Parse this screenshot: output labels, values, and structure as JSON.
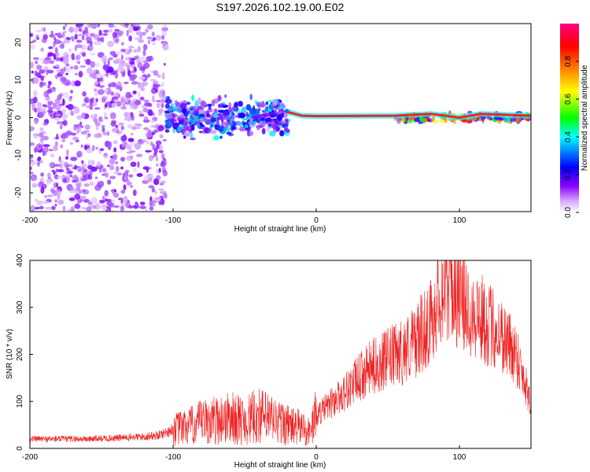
{
  "chart_data": [
    {
      "type": "heatmap",
      "title": "S197.2026.102.19.00.E02",
      "xlabel": "Height of straight line (km)",
      "ylabel": "Frequency (Hz)",
      "xlim": [
        -200,
        150
      ],
      "ylim": [
        -25,
        25
      ],
      "x_ticks": [
        -200,
        -100,
        0,
        100
      ],
      "x_tick_labels": [
        "-200",
        "-100",
        "0",
        "100"
      ],
      "y_ticks": [
        -20,
        -10,
        0,
        10,
        20
      ],
      "y_tick_labels": [
        "-20",
        "-10",
        "0",
        "10",
        "20"
      ],
      "colorbar": {
        "label": "Normalized spectral amplitude",
        "range": [
          0,
          1
        ],
        "ticks": [
          0.0,
          0.2,
          0.4,
          0.6,
          0.8
        ],
        "tick_labels": [
          "0.0",
          "0.2",
          "0.4",
          "0.6",
          "0.8"
        ],
        "colors": [
          "#ffffff",
          "#c080ff",
          "#7a00ff",
          "#0000ff",
          "#00ffff",
          "#00ff00",
          "#ffff00",
          "#ff8000",
          "#ff0000",
          "#ff0080"
        ]
      },
      "regions": [
        {
          "x_range": [
            -200,
            -105
          ],
          "description": "broadband noise",
          "amplitude_mean": 0.12
        },
        {
          "x_range": [
            -105,
            -20
          ],
          "description": "scattered energy near 0 Hz",
          "amplitude_mean": 0.25
        },
        {
          "x_range": [
            -20,
            55
          ],
          "description": "strong tone at 0 Hz",
          "amplitude_mean": 0.9
        },
        {
          "x_range": [
            55,
            150
          ],
          "description": "tone at 0 to 1 Hz with sidebands",
          "amplitude_mean": 0.5
        }
      ],
      "tone_trace": [
        {
          "x": -20,
          "y": 1.5
        },
        {
          "x": -10,
          "y": 0.5
        },
        {
          "x": 0,
          "y": 0.4
        },
        {
          "x": 55,
          "y": 0.5
        },
        {
          "x": 80,
          "y": 1.0
        },
        {
          "x": 100,
          "y": 0.0
        },
        {
          "x": 115,
          "y": 1.0
        },
        {
          "x": 150,
          "y": 0.5
        }
      ]
    },
    {
      "type": "line",
      "xlabel": "Height of straight line (km)",
      "ylabel": "SNR (10 * v/v)",
      "xlim": [
        -200,
        150
      ],
      "ylim": [
        0,
        400
      ],
      "x_ticks": [
        -200,
        -100,
        0,
        100
      ],
      "x_tick_labels": [
        "-200",
        "-100",
        "0",
        "100"
      ],
      "y_ticks": [
        0,
        100,
        200,
        300,
        400
      ],
      "y_tick_labels": [
        "0",
        "100",
        "200",
        "300",
        "400"
      ],
      "color": "#ee2222",
      "series": [
        {
          "name": "SNR",
          "x": [
            -200,
            -180,
            -160,
            -140,
            -120,
            -110,
            -100,
            -90,
            -80,
            -70,
            -60,
            -50,
            -40,
            -30,
            -20,
            -15,
            -10,
            -5,
            0,
            10,
            20,
            30,
            40,
            50,
            60,
            70,
            80,
            85,
            90,
            95,
            100,
            110,
            120,
            130,
            140,
            150
          ],
          "y": [
            20,
            20,
            20,
            22,
            25,
            28,
            40,
            45,
            55,
            60,
            65,
            58,
            70,
            60,
            50,
            45,
            45,
            35,
            70,
            95,
            120,
            150,
            175,
            190,
            205,
            230,
            270,
            320,
            350,
            345,
            320,
            290,
            265,
            240,
            200,
            100
          ]
        }
      ]
    }
  ]
}
